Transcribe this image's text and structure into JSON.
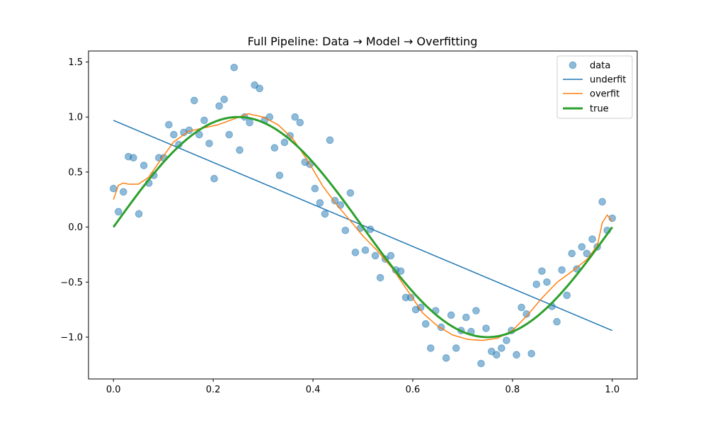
{
  "chart_data": {
    "type": "scatter",
    "title": "Full Pipeline: Data → Model → Overfitting",
    "xlabel": "",
    "ylabel": "",
    "xlim": [
      -0.05,
      1.05
    ],
    "ylim": [
      -1.38,
      1.6
    ],
    "grid": false,
    "legend_position": "top-right",
    "x_ticks": [
      0.0,
      0.2,
      0.4,
      0.6,
      0.8,
      1.0
    ],
    "x_tick_labels": [
      "0.0",
      "0.2",
      "0.4",
      "0.6",
      "0.8",
      "1.0"
    ],
    "y_ticks": [
      -1.0,
      -0.5,
      0.0,
      0.5,
      1.0,
      1.5
    ],
    "y_tick_labels": [
      "−1.0",
      "−0.5",
      "0.0",
      "0.5",
      "1.0",
      "1.5"
    ],
    "series": [
      {
        "name": "data",
        "kind": "scatter",
        "color": "#1f77b4",
        "alpha": 0.5,
        "x": [
          0.0,
          0.01,
          0.02,
          0.03,
          0.04,
          0.051,
          0.061,
          0.071,
          0.081,
          0.091,
          0.101,
          0.111,
          0.121,
          0.131,
          0.141,
          0.152,
          0.162,
          0.172,
          0.182,
          0.192,
          0.202,
          0.212,
          0.222,
          0.232,
          0.242,
          0.253,
          0.263,
          0.273,
          0.283,
          0.293,
          0.303,
          0.313,
          0.323,
          0.333,
          0.343,
          0.354,
          0.364,
          0.374,
          0.384,
          0.394,
          0.404,
          0.414,
          0.424,
          0.434,
          0.444,
          0.455,
          0.465,
          0.475,
          0.485,
          0.495,
          0.505,
          0.515,
          0.525,
          0.535,
          0.545,
          0.556,
          0.566,
          0.576,
          0.586,
          0.596,
          0.606,
          0.616,
          0.626,
          0.636,
          0.646,
          0.657,
          0.667,
          0.677,
          0.687,
          0.697,
          0.707,
          0.717,
          0.727,
          0.737,
          0.747,
          0.758,
          0.768,
          0.778,
          0.788,
          0.798,
          0.808,
          0.818,
          0.828,
          0.838,
          0.848,
          0.859,
          0.869,
          0.879,
          0.889,
          0.899,
          0.909,
          0.919,
          0.929,
          0.939,
          0.949,
          0.96,
          0.97,
          0.98,
          0.99,
          1.0
        ],
        "y": [
          0.35,
          0.14,
          0.32,
          0.64,
          0.63,
          0.12,
          0.56,
          0.4,
          0.47,
          0.63,
          0.63,
          0.93,
          0.84,
          0.75,
          0.86,
          0.88,
          1.15,
          0.84,
          0.97,
          0.76,
          0.44,
          1.1,
          1.16,
          0.84,
          1.45,
          0.7,
          1.0,
          0.95,
          1.29,
          1.26,
          0.97,
          1.0,
          0.72,
          0.47,
          0.77,
          0.83,
          1.0,
          0.95,
          0.59,
          0.57,
          0.35,
          0.22,
          0.12,
          0.79,
          0.24,
          0.2,
          -0.03,
          0.31,
          -0.23,
          -0.01,
          -0.21,
          -0.02,
          -0.26,
          -0.46,
          -0.29,
          -0.26,
          -0.39,
          -0.4,
          -0.64,
          -0.64,
          -0.75,
          -0.73,
          -0.88,
          -1.1,
          -0.76,
          -0.91,
          -1.19,
          -0.8,
          -1.1,
          -0.94,
          -0.82,
          -0.95,
          -0.76,
          -1.24,
          -0.92,
          -1.13,
          -1.16,
          -1.1,
          -1.03,
          -0.94,
          -1.16,
          -0.73,
          -0.79,
          -1.15,
          -0.52,
          -0.4,
          -0.5,
          -0.72,
          -0.86,
          -0.39,
          -0.62,
          -0.24,
          -0.38,
          -0.18,
          -0.24,
          -0.11,
          -0.18,
          0.23,
          -0.03,
          0.08
        ]
      },
      {
        "name": "underfit",
        "kind": "line",
        "color": "#1f77b4",
        "linewidth": 1.5,
        "x": [
          0.0,
          1.0
        ],
        "y": [
          0.97,
          -0.94
        ]
      },
      {
        "name": "overfit",
        "kind": "line",
        "color": "#ff7f0e",
        "linewidth": 1.5,
        "x": [
          0.0,
          0.01,
          0.02,
          0.03,
          0.05,
          0.07,
          0.09,
          0.12,
          0.15,
          0.18,
          0.21,
          0.24,
          0.27,
          0.3,
          0.33,
          0.36,
          0.39,
          0.42,
          0.45,
          0.48,
          0.5,
          0.53,
          0.56,
          0.59,
          0.62,
          0.65,
          0.68,
          0.71,
          0.74,
          0.77,
          0.8,
          0.83,
          0.86,
          0.89,
          0.92,
          0.95,
          0.97,
          0.98,
          0.99,
          1.0
        ],
        "y": [
          0.25,
          0.38,
          0.4,
          0.39,
          0.39,
          0.45,
          0.58,
          0.77,
          0.87,
          0.9,
          0.93,
          0.98,
          1.03,
          1.0,
          0.93,
          0.8,
          0.6,
          0.37,
          0.19,
          0.03,
          -0.08,
          -0.22,
          -0.38,
          -0.58,
          -0.78,
          -0.9,
          -0.98,
          -1.02,
          -1.03,
          -1.01,
          -0.94,
          -0.8,
          -0.64,
          -0.5,
          -0.4,
          -0.29,
          -0.17,
          0.04,
          0.11,
          0.05
        ]
      },
      {
        "name": "true",
        "kind": "function",
        "function": "sin(2πx)",
        "color": "#2ca02c",
        "linewidth": 3
      }
    ]
  }
}
